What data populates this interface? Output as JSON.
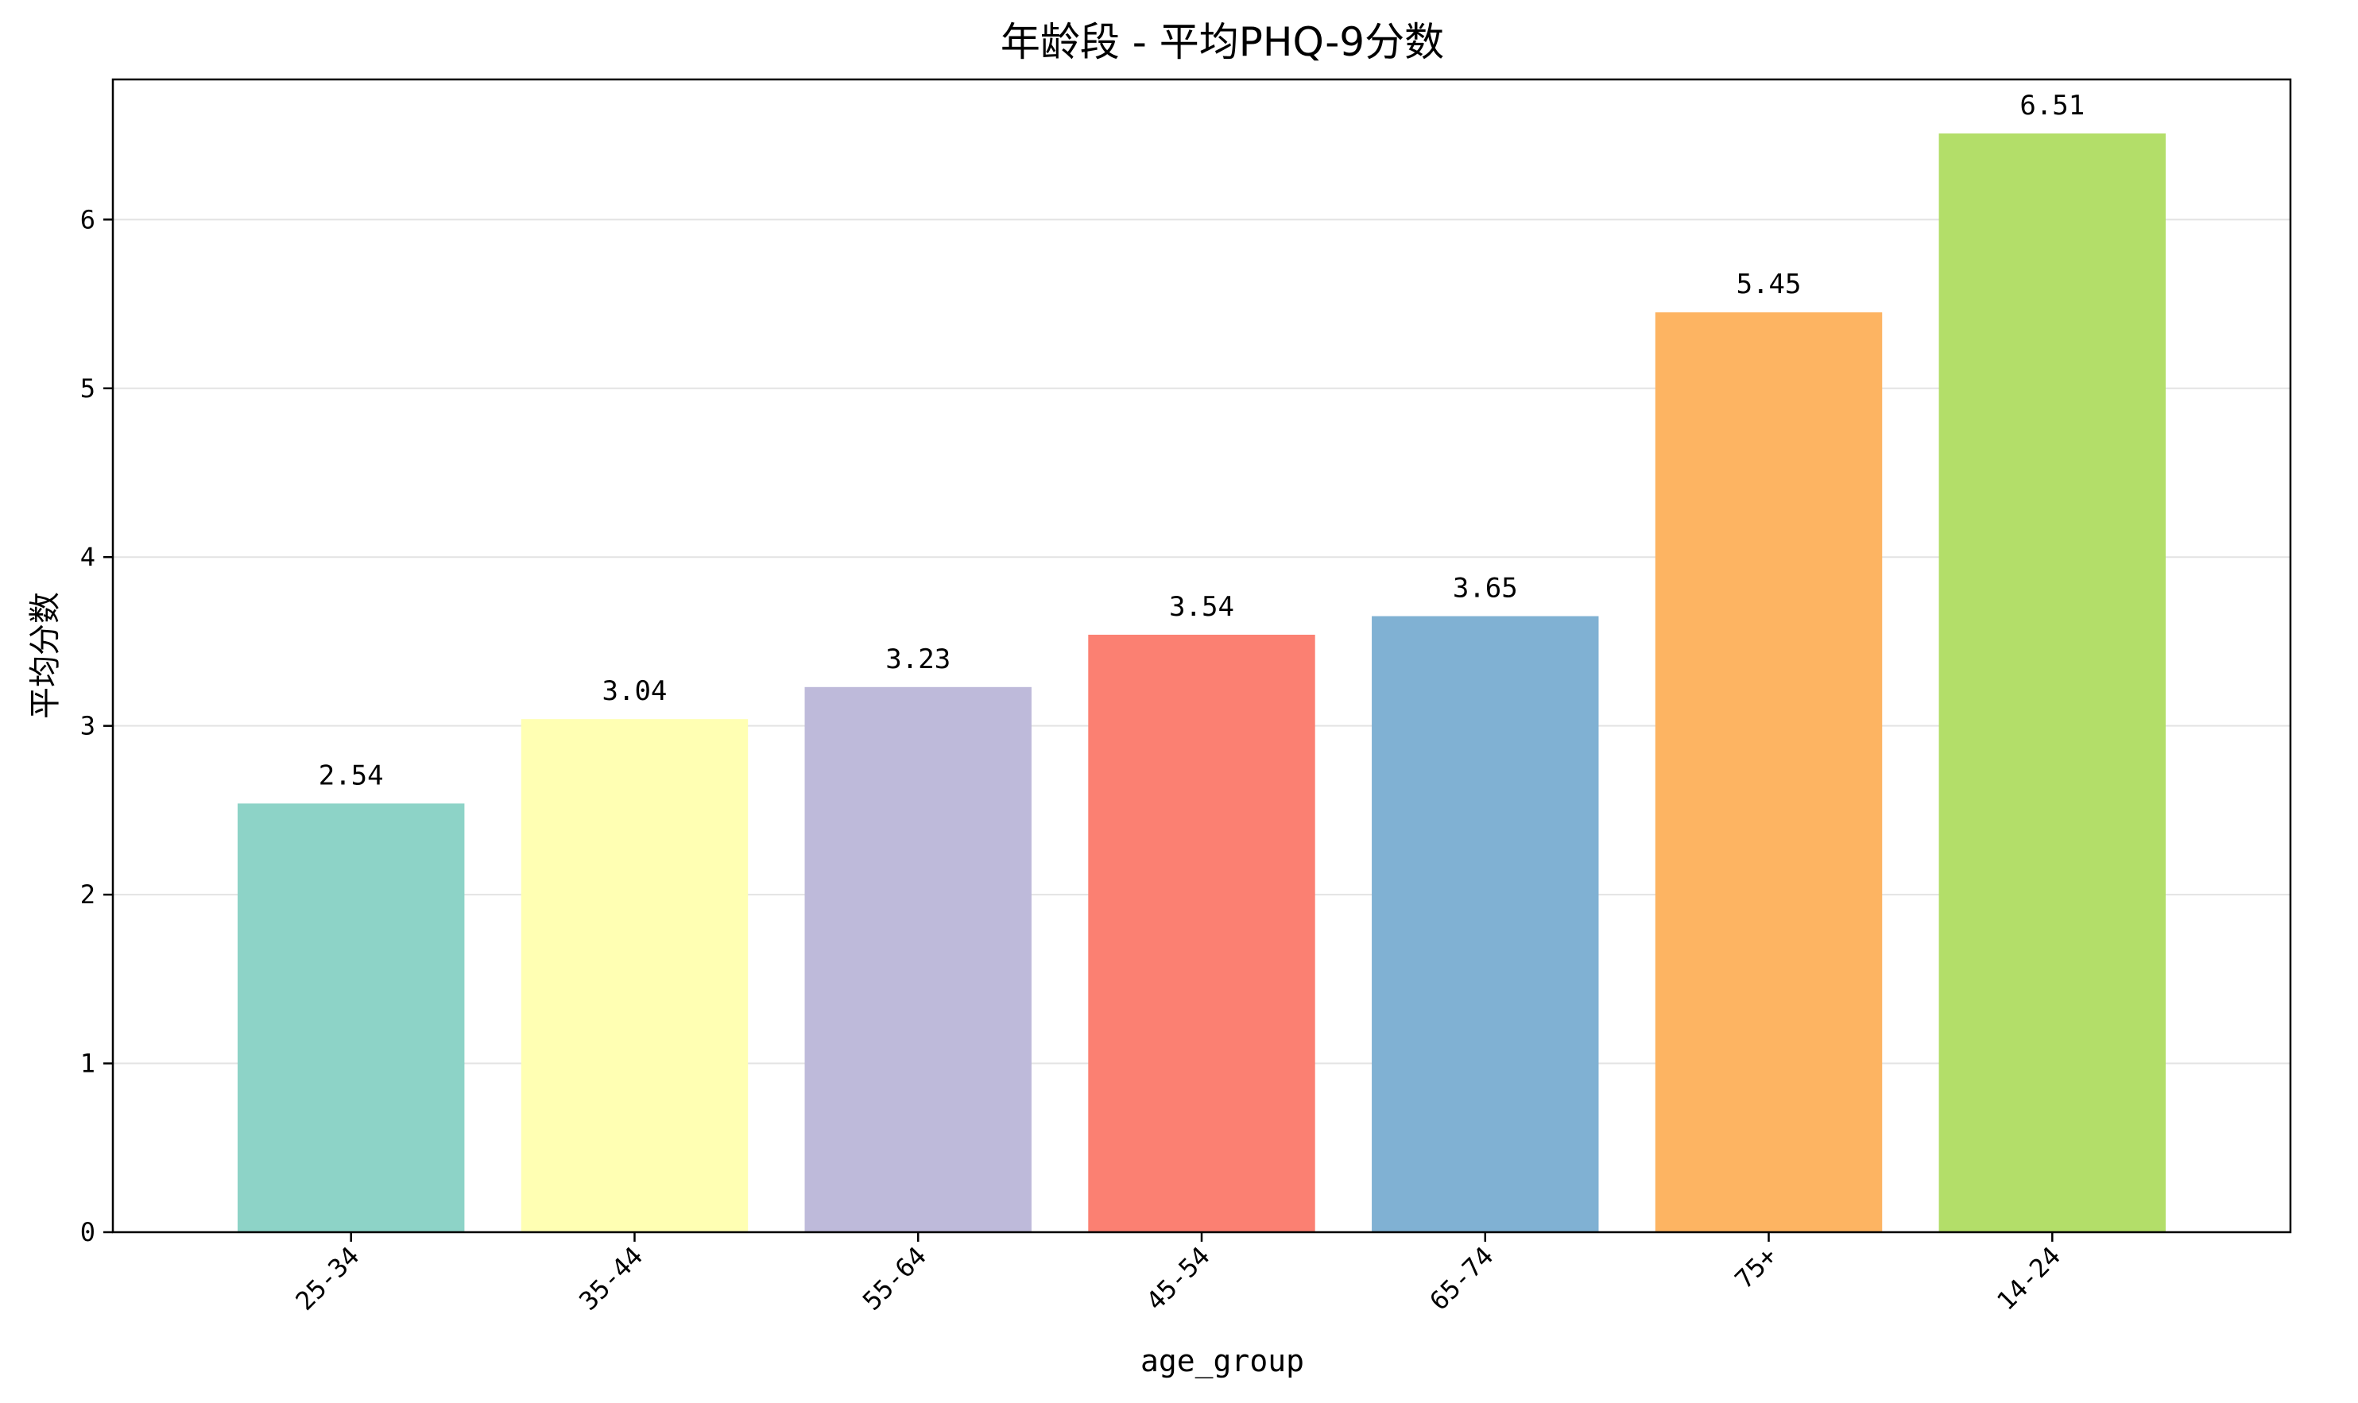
{
  "chart_data": {
    "type": "bar",
    "title": "年龄段 - 平均PHQ-9分数",
    "xlabel": "age_group",
    "ylabel": "平均分数",
    "categories": [
      "25-34",
      "35-44",
      "55-64",
      "45-54",
      "65-74",
      "75+",
      "14-24"
    ],
    "values": [
      2.54,
      3.04,
      3.23,
      3.54,
      3.65,
      5.45,
      6.51
    ],
    "data_labels": [
      "2.54",
      "3.04",
      "3.23",
      "3.54",
      "3.65",
      "5.45",
      "6.51"
    ],
    "colors": [
      "#8dd3c7",
      "#ffffb3",
      "#bebada",
      "#fb8072",
      "#80b1d3",
      "#fdb462",
      "#b3de69"
    ],
    "ylim": [
      0,
      6.83
    ],
    "yticks": [
      0,
      1,
      2,
      3,
      4,
      5,
      6
    ],
    "ytick_labels": [
      "0",
      "1",
      "2",
      "3",
      "4",
      "5",
      "6"
    ],
    "grid": "y",
    "legend": "none"
  }
}
